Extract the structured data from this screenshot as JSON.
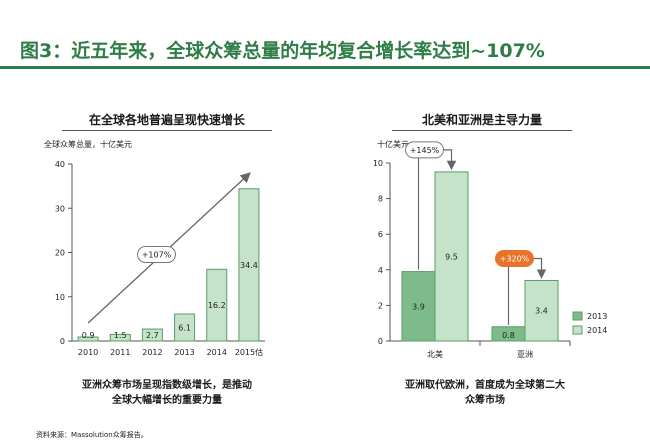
{
  "page": {
    "title": "图3：近五年来，全球众筹总量的年均复合增长率达到~107%",
    "source": "资料来源：Massolution众筹报告。"
  },
  "chart_data": [
    {
      "type": "bar",
      "title": "在全球各地普遍呈现快速增长",
      "ylabel": "全球众筹总量，十亿美元",
      "categories": [
        "2010",
        "2011",
        "2012",
        "2013",
        "2014",
        "2015估"
      ],
      "values": [
        0.9,
        1.5,
        2.7,
        6.1,
        16.2,
        34.4
      ],
      "data_labels": [
        "0.9",
        "1.5",
        "2.7",
        "6.1",
        "16.2",
        "34.4"
      ],
      "ylim": [
        0,
        40
      ],
      "yticks": [
        "0",
        "10",
        "20",
        "30",
        "40"
      ],
      "annotations": [
        {
          "text": "+107%"
        }
      ],
      "caption_lines": [
        "亚洲众筹市场呈现指数级增长，是推动",
        "全球大幅增长的重要力量"
      ],
      "colors": {
        "bar": "#c5e3c9",
        "bar_stroke": "#5a9c68",
        "arrow": "#666666"
      }
    },
    {
      "type": "bar",
      "title": "北美和亚洲是主导力量",
      "ylabel": "十亿美元",
      "categories": [
        "北美",
        "亚洲"
      ],
      "series": [
        {
          "name": "2013",
          "values": [
            3.9,
            0.8
          ],
          "color": "#7dbb8a"
        },
        {
          "name": "2014",
          "values": [
            9.5,
            3.4
          ],
          "color": "#c5e3c9"
        }
      ],
      "data_labels": [
        [
          "3.9",
          "9.5"
        ],
        [
          "0.8",
          "3.4"
        ]
      ],
      "ylim": [
        0,
        10
      ],
      "yticks": [
        "0",
        "2",
        "4",
        "6",
        "8",
        "10"
      ],
      "annotations": [
        {
          "text": "+145%",
          "color": "#ffffff"
        },
        {
          "text": "+320%",
          "color": "#e8742a"
        }
      ],
      "legend_position": "bottom-right",
      "caption_lines": [
        "亚洲取代欧洲，首度成为全球第二大",
        "众筹市场"
      ],
      "colors": {
        "bar_stroke": "#5a9c68",
        "arrow": "#666666"
      }
    }
  ]
}
